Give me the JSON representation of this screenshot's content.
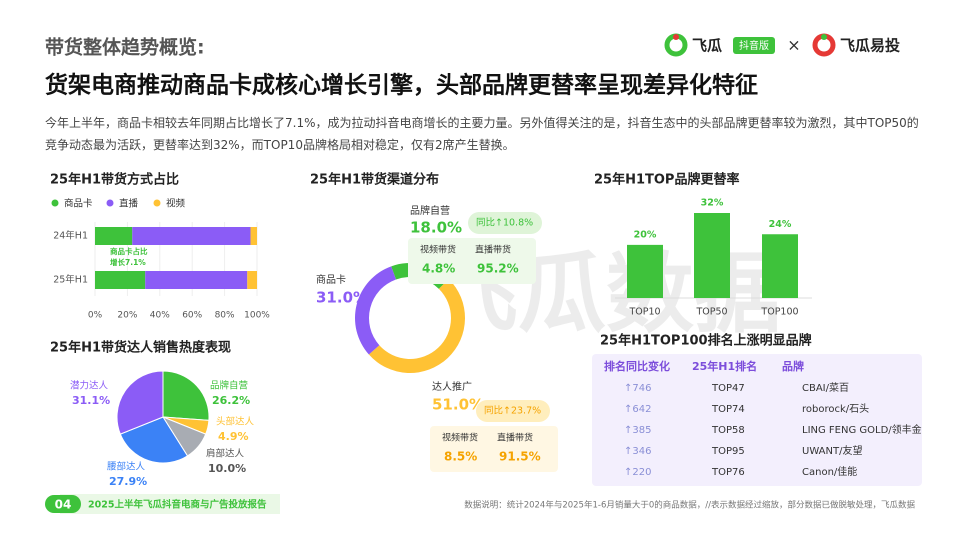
{
  "header": {
    "section": "带货整体趋势概览:",
    "title": "货架电商推动商品卡成核心增长引擎，头部品牌更替率呈现差异化特征",
    "logo_left": "飞瓜",
    "logo_badge": "抖音版",
    "logo_sep": "×",
    "logo_right": "飞瓜易投"
  },
  "intro": "今年上半年，商品卡相较去年同期占比增长了7.1%，成为拉动抖音电商增长的主要力量。另外值得关注的是，抖音生态中的头部品牌更替率较为激烈，其中TOP50的竞争动态最为活跃，更替率达到32%，而TOP10品牌格局相对稳定，仅有2席产生替换。",
  "watermark": "飞瓜数据",
  "chart_data": [
    {
      "type": "stacked_barh",
      "title": "25年H1带货方式占比",
      "categories": [
        "24年H1",
        "25年H1"
      ],
      "series": [
        {
          "name": "商品卡",
          "color": "#3ec23b",
          "values": [
            23,
            31
          ]
        },
        {
          "name": "直播",
          "color": "#8b5cf6",
          "values": [
            73,
            63
          ]
        },
        {
          "name": "视频",
          "color": "#ffc234",
          "values": [
            4,
            6
          ]
        }
      ],
      "xlim": [
        0,
        100
      ],
      "xticks": [
        {
          "value": 0,
          "label": "0%"
        },
        {
          "value": 20,
          "label": "20%"
        },
        {
          "value": 40,
          "label": "40%"
        },
        {
          "value": 60,
          "label": "60%"
        },
        {
          "value": 80,
          "label": "80%"
        },
        {
          "value": 100,
          "label": "100%"
        }
      ],
      "grid": true,
      "legend": "top-left",
      "annotation": [
        "商品卡占比",
        "增长7.1%"
      ]
    },
    {
      "type": "donut",
      "title": "25年H1带货渠道分布",
      "categories": [
        "品牌自营",
        "达人推广",
        "商品卡"
      ],
      "values": [
        18.0,
        51.0,
        31.0
      ],
      "value_labels": [
        "18.0%",
        "51.0%",
        "31.0%"
      ],
      "colors": [
        "#3ec23b",
        "#ffc234",
        "#8b5cf6"
      ],
      "details": [
        {
          "change": "同比↑10.8%",
          "items": [
            [
              "视频带货",
              "4.8%"
            ],
            [
              "直播带货",
              "95.2%"
            ]
          ]
        },
        {
          "change": "同比↑23.7%",
          "items": [
            [
              "视频带货",
              "8.5%"
            ],
            [
              "直播带货",
              "91.5%"
            ]
          ]
        }
      ]
    },
    {
      "type": "bar",
      "title": "25年H1TOP品牌更替率",
      "categories": [
        "TOP10",
        "TOP50",
        "TOP100"
      ],
      "values": [
        20,
        32,
        24
      ],
      "value_labels": [
        "20%",
        "32%",
        "24%"
      ],
      "color": "#3ec23b",
      "ylim": [
        0,
        32
      ]
    },
    {
      "type": "pie",
      "title": "25年H1带货达人销售热度表现",
      "categories": [
        "品牌自营",
        "头部达人",
        "肩部达人",
        "腰部达人",
        "潜力达人"
      ],
      "values": [
        26.2,
        4.9,
        10.0,
        27.9,
        31.1
      ],
      "value_labels": [
        "26.2%",
        "4.9%",
        "10.0%",
        "27.9%",
        "31.1%"
      ],
      "colors": [
        "#3ec23b",
        "#ffc234",
        "#a8acb3",
        "#3b82f6",
        "#8b5cf6"
      ]
    }
  ],
  "table": {
    "title": "25年H1TOP100排名上涨明显品牌",
    "columns": [
      "排名同比变化",
      "25年H1排名",
      "品牌"
    ],
    "rows": [
      [
        "↑746",
        "TOP47",
        "CBAI/菜百"
      ],
      [
        "↑642",
        "TOP74",
        "roborock/石头"
      ],
      [
        "↑385",
        "TOP58",
        "LING FENG GOLD/领丰金"
      ],
      [
        "↑346",
        "TOP95",
        "UWANT/友望"
      ],
      [
        "↑220",
        "TOP76",
        "Canon/佳能"
      ]
    ]
  },
  "footer": {
    "page": "04",
    "report": "2025上半年飞瓜抖音电商与广告投放报告",
    "note": "数据说明：统计2024年与2025年1-6月销量大于0的商品数据，//表示数据经过缩放，部分数据已做脱敏处理，飞瓜数据"
  }
}
